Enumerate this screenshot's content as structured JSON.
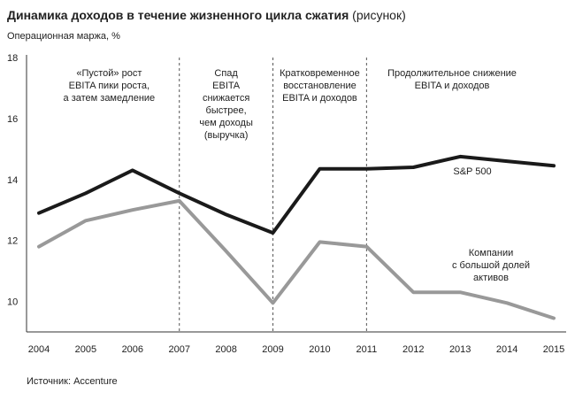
{
  "header": {
    "title_bold": "Динамика доходов в течение жизненного цикла сжатия",
    "title_normal": " (рисунок)",
    "ylabel": "Операционная маржа, %"
  },
  "source": "Источник: Accenture",
  "chart_data": {
    "type": "line",
    "x": [
      2004,
      2005,
      2006,
      2007,
      2008,
      2009,
      2010,
      2011,
      2012,
      2013,
      2014,
      2015
    ],
    "ylim": [
      9,
      18
    ],
    "yticks": [
      10,
      12,
      14,
      16,
      18
    ],
    "grid": false,
    "series": [
      {
        "name": "S&P 500",
        "color": "#1a1a1a",
        "values": [
          12.9,
          13.55,
          14.3,
          13.55,
          12.85,
          12.25,
          14.35,
          14.35,
          14.4,
          14.75,
          14.6,
          14.45
        ]
      },
      {
        "name": "Компании с большой долей активов",
        "color": "#999999",
        "values": [
          11.8,
          12.65,
          13.0,
          13.3,
          11.65,
          9.95,
          11.95,
          11.8,
          10.3,
          10.3,
          9.95,
          9.45
        ]
      }
    ],
    "series_labels": [
      [
        "S&P 500"
      ],
      [
        "Компании",
        "с большой долей",
        "активов"
      ]
    ],
    "dividers": [
      2007,
      2009,
      2011
    ],
    "phases": [
      [
        "«Пустой» рост",
        "EBITA пики роста,",
        "а затем замедление"
      ],
      [
        "Спад",
        "EBITA",
        "снижается",
        "быстрее,",
        "чем доходы",
        "(выручка)"
      ],
      [
        "Кратковременное",
        "восстановление",
        "EBITA и доходов"
      ],
      [
        "Продолжительное снижение",
        "EBITA и доходов"
      ]
    ]
  }
}
